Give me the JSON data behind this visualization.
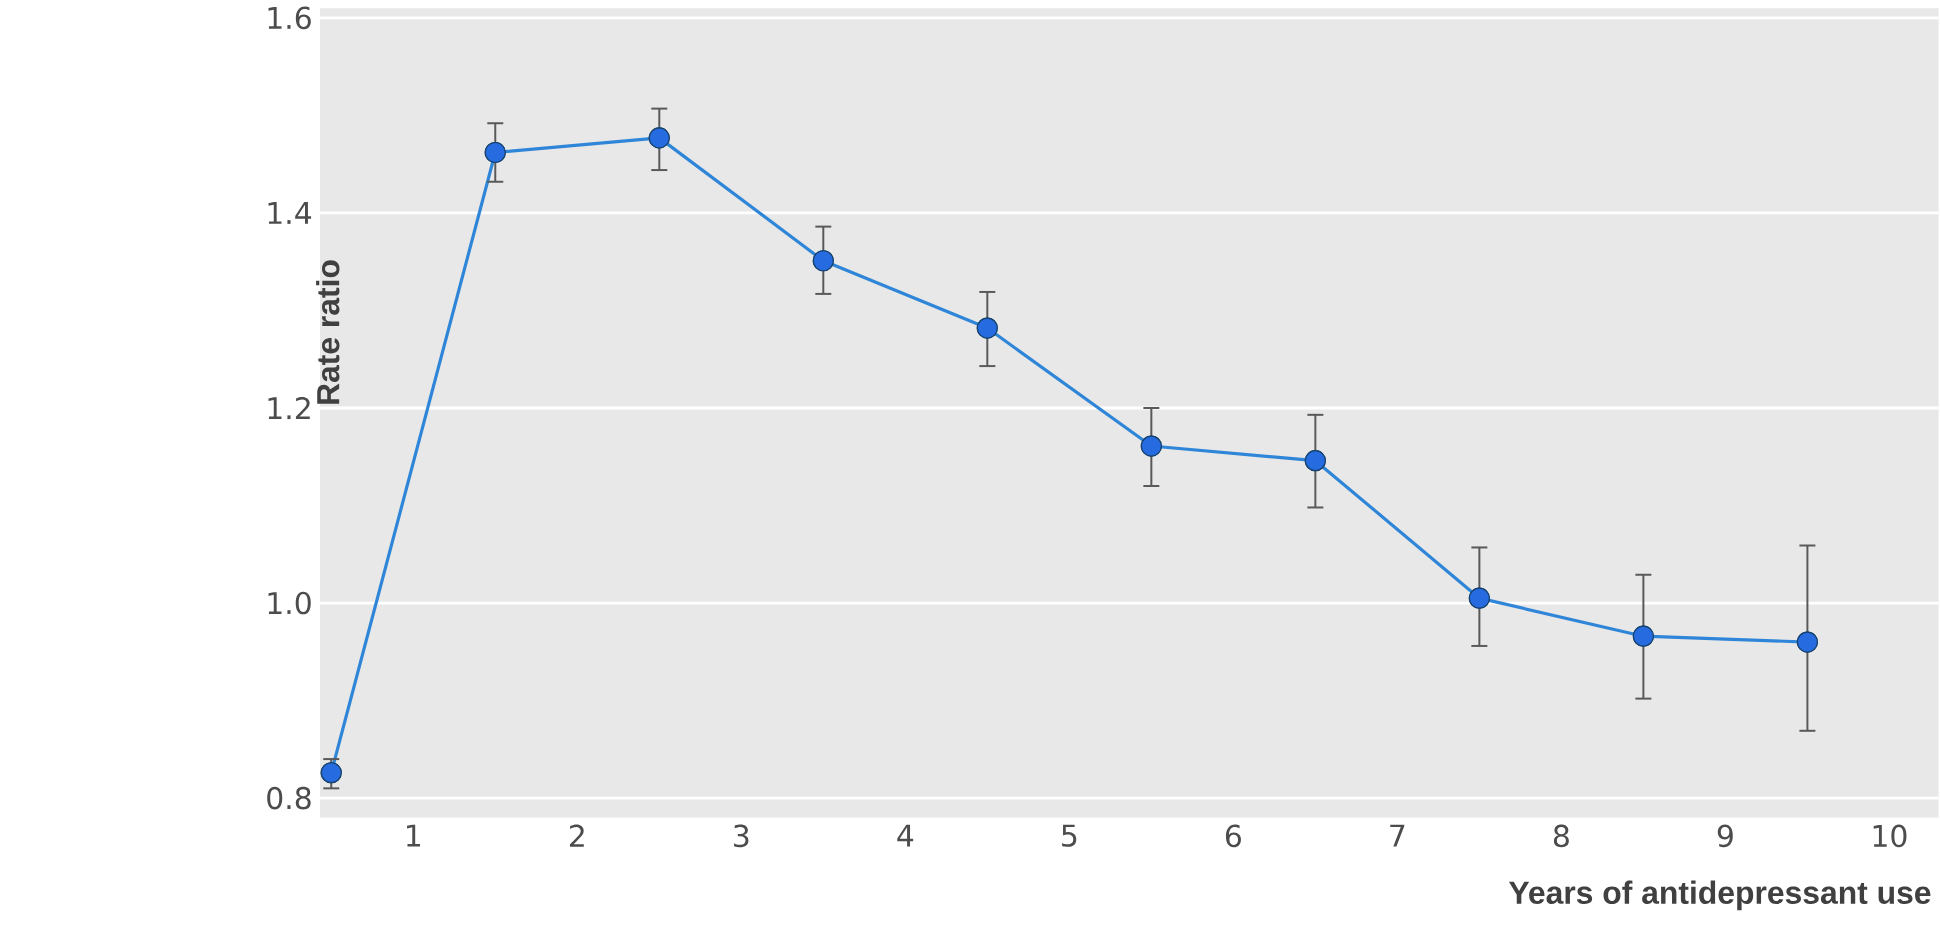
{
  "chart_data": {
    "type": "line",
    "xlabel": "Years of antidepressant use",
    "ylabel": "Rate ratio",
    "x": [
      0.5,
      1.5,
      2.5,
      3.5,
      4.5,
      5.5,
      6.5,
      7.5,
      8.5,
      9.5
    ],
    "values": [
      0.826,
      1.462,
      1.477,
      1.351,
      1.282,
      1.161,
      1.146,
      1.005,
      0.966,
      0.96
    ],
    "errors": [
      [
        0.81,
        0.84
      ],
      [
        1.432,
        1.492
      ],
      [
        1.444,
        1.507
      ],
      [
        1.317,
        1.386
      ],
      [
        1.243,
        1.319
      ],
      [
        1.12,
        1.2
      ],
      [
        1.098,
        1.193
      ],
      [
        0.956,
        1.057
      ],
      [
        0.902,
        1.029
      ],
      [
        0.869,
        1.059
      ]
    ],
    "color": "#2f86d8",
    "marker": "circle",
    "line_style": "solid",
    "grid": "y",
    "xlim": [
      0.43,
      10.3
    ],
    "ylim": [
      0.78,
      1.61
    ],
    "xticks": [
      1,
      2,
      3,
      4,
      5,
      6,
      7,
      8,
      9,
      10
    ],
    "yticks": [
      {
        "value": 0.8,
        "label": "0.8"
      },
      {
        "value": 1.0,
        "label": "1.0"
      },
      {
        "value": 1.2,
        "label": "1.2"
      },
      {
        "value": 1.4,
        "label": "1.4"
      },
      {
        "value": 1.6,
        "label": "1.6"
      }
    ]
  }
}
